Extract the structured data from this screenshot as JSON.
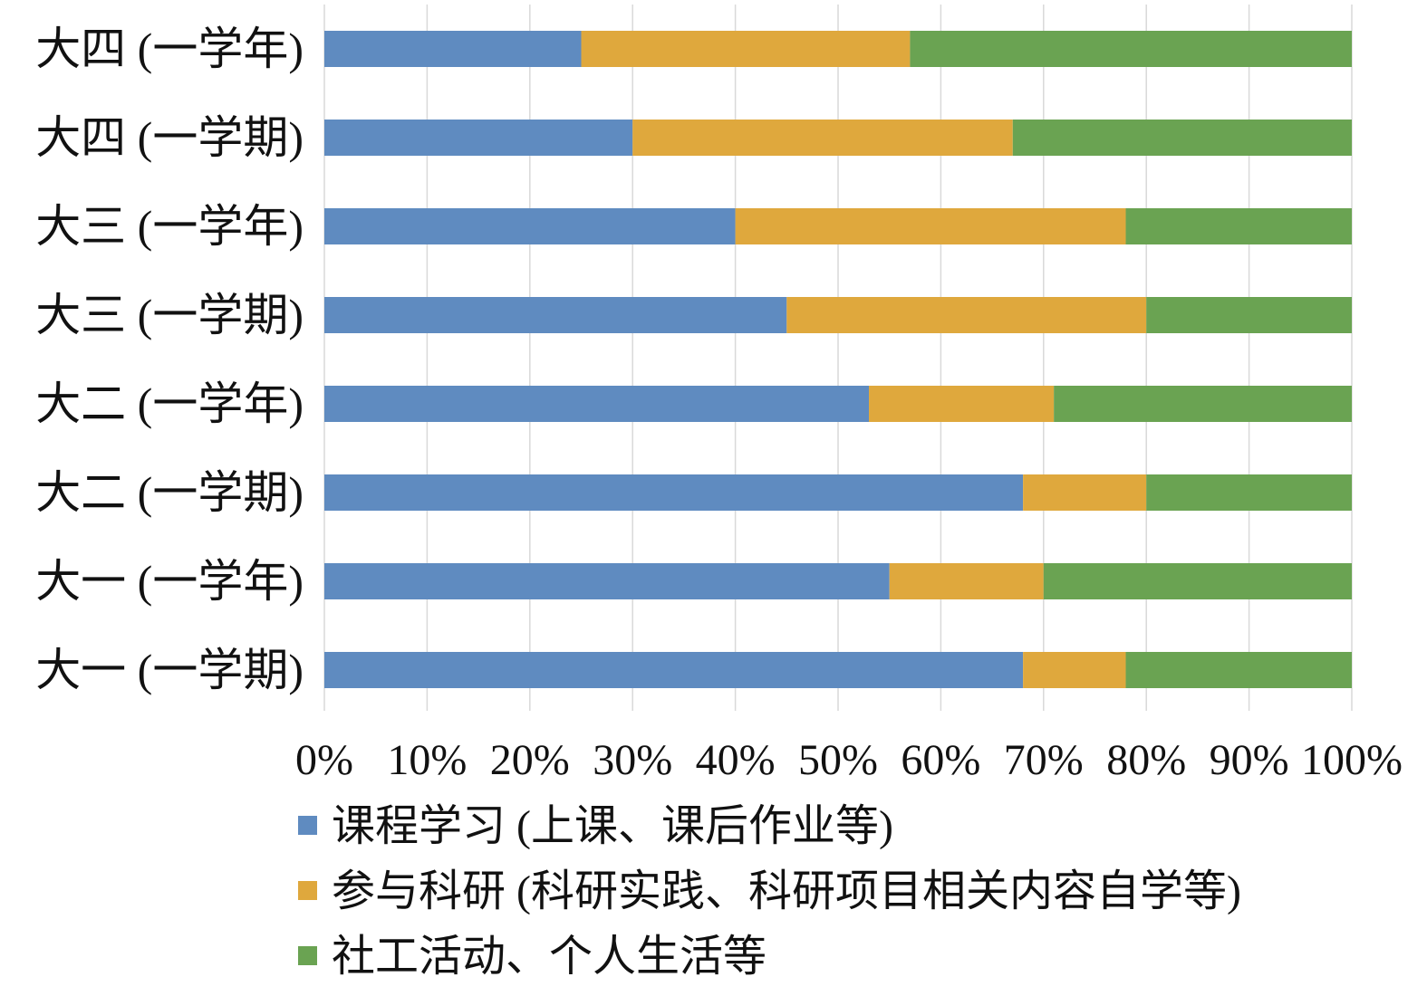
{
  "chart_data": {
    "type": "bar",
    "orientation": "horizontal",
    "stacked": "percent",
    "categories": [
      "大四 (一学年)",
      "大四 (一学期)",
      "大三 (一学年)",
      "大三 (一学期)",
      "大二 (一学年)",
      "大二 (一学期)",
      "大一 (一学年)",
      "大一 (一学期)"
    ],
    "series": [
      {
        "name": "课程学习 (上课、课后作业等)",
        "color": "#5f8bc0",
        "values": [
          25,
          30,
          40,
          45,
          53,
          68,
          55,
          68
        ]
      },
      {
        "name": "参与科研 (科研实践、科研项目相关内容自学等)",
        "color": "#dfa83d",
        "values": [
          32,
          37,
          38,
          35,
          18,
          12,
          15,
          10
        ]
      },
      {
        "name": "社工活动、个人生活等",
        "color": "#6aa352",
        "values": [
          43,
          33,
          22,
          20,
          29,
          20,
          30,
          22
        ]
      }
    ],
    "xlim": [
      0,
      100
    ],
    "x_ticks": [
      "0%",
      "10%",
      "20%",
      "30%",
      "40%",
      "50%",
      "60%",
      "70%",
      "80%",
      "90%",
      "100%"
    ],
    "grid": "vertical",
    "legend_placement": "bottom",
    "title": "",
    "xlabel": "",
    "ylabel": ""
  }
}
